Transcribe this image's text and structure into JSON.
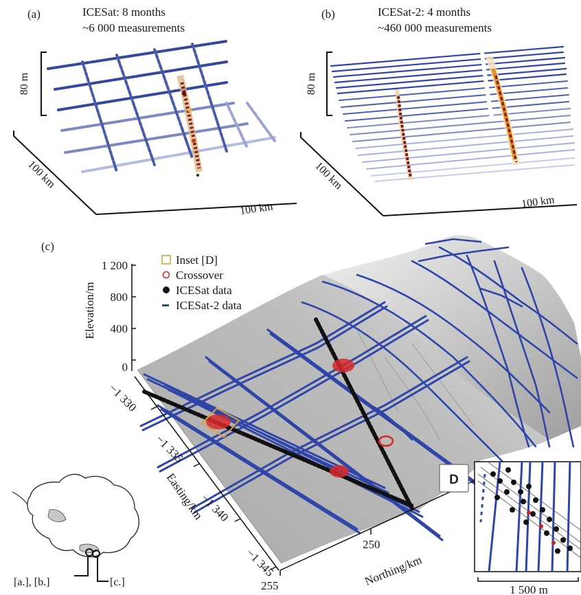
{
  "panel_a": {
    "label": "(a)",
    "title_line1": "ICESat: 8 months",
    "title_line2": "~6 000 measurements",
    "scale_vertical": "80 m",
    "scale_depth": "100 km",
    "scale_horizontal": "100 km"
  },
  "panel_b": {
    "label": "(b)",
    "title_line1": "ICESat-2: 4 months",
    "title_line2": "~460 000 measurements",
    "scale_vertical": "80 m",
    "scale_depth": "100 km",
    "scale_horizontal": "100 km"
  },
  "panel_c": {
    "label": "(c)",
    "legend": [
      {
        "name": "inset",
        "label": "Inset [D]",
        "color": "#d9a441"
      },
      {
        "name": "crossover",
        "label": "Crossover",
        "color": "#d62a2a"
      },
      {
        "name": "icesat",
        "label": "ICESat data",
        "color": "#111111"
      },
      {
        "name": "icesat2",
        "label": "ICESat-2 data",
        "color": "#2a3e9e"
      }
    ],
    "elevation_axis": {
      "label": "Elevation/m",
      "ticks": [
        "1 200",
        "800",
        "400",
        "0"
      ]
    },
    "easting_axis": {
      "label": "Easting/km",
      "ticks": [
        "−1 330",
        "−1 335",
        "−1 340",
        "−1 345"
      ]
    },
    "northing_axis": {
      "label": "Northing/km",
      "ticks": [
        "255",
        "250"
      ]
    },
    "inset": {
      "label": "D",
      "scale": "1 500 m"
    }
  },
  "map": {
    "labels": [
      "[a.], [b.]",
      "[c.]"
    ]
  },
  "colors": {
    "icesat2_blue": "#2f45a8",
    "surface_gray": "#b4b4b4",
    "crossover_red": "#d62a2a",
    "inset_orange": "#d9a441"
  }
}
